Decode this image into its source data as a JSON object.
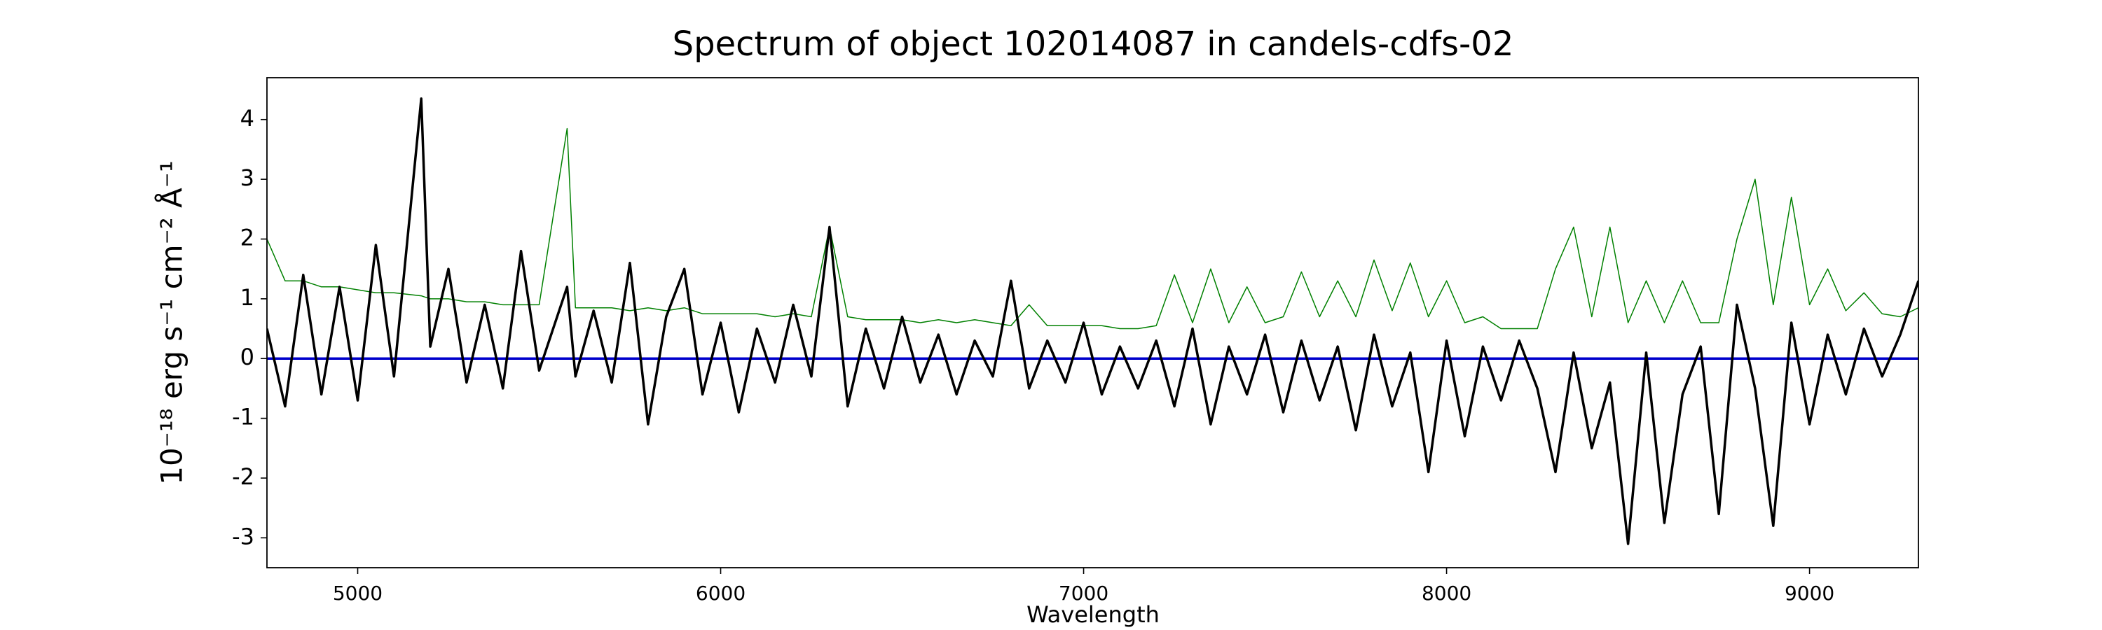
{
  "chart_data": {
    "type": "line",
    "title": "Spectrum of object 102014087 in candels-cdfs-02",
    "xlabel": "Wavelength",
    "ylabel": "10⁻¹⁸ erg s⁻¹ cm⁻² Å⁻¹",
    "xlim": [
      4750,
      9300
    ],
    "ylim": [
      -3.5,
      4.7
    ],
    "xticks": [
      5000,
      6000,
      7000,
      8000,
      9000
    ],
    "yticks": [
      -3,
      -2,
      -1,
      0,
      1,
      2,
      3,
      4
    ],
    "grid": false,
    "x": [
      4750,
      4800,
      4850,
      4900,
      4950,
      5000,
      5050,
      5100,
      5175,
      5200,
      5250,
      5300,
      5350,
      5400,
      5450,
      5500,
      5577,
      5600,
      5650,
      5700,
      5750,
      5800,
      5850,
      5900,
      5950,
      6000,
      6050,
      6100,
      6150,
      6200,
      6250,
      6300,
      6350,
      6400,
      6450,
      6500,
      6550,
      6600,
      6650,
      6700,
      6750,
      6800,
      6850,
      6900,
      6950,
      7000,
      7050,
      7100,
      7150,
      7200,
      7250,
      7300,
      7350,
      7400,
      7450,
      7500,
      7550,
      7600,
      7650,
      7700,
      7750,
      7800,
      7850,
      7900,
      7950,
      8000,
      8050,
      8100,
      8150,
      8200,
      8250,
      8300,
      8350,
      8400,
      8450,
      8500,
      8550,
      8600,
      8650,
      8700,
      8750,
      8800,
      8850,
      8900,
      8950,
      9000,
      9050,
      9100,
      9150,
      9200,
      9250,
      9300
    ],
    "series": [
      {
        "color": "#008000",
        "width": 1.5,
        "values": [
          2.0,
          1.3,
          1.3,
          1.2,
          1.2,
          1.15,
          1.1,
          1.1,
          1.05,
          1.0,
          1.0,
          0.95,
          0.95,
          0.9,
          0.9,
          0.9,
          3.85,
          0.85,
          0.85,
          0.85,
          0.8,
          0.85,
          0.8,
          0.85,
          0.75,
          0.75,
          0.75,
          0.75,
          0.7,
          0.75,
          0.7,
          2.2,
          0.7,
          0.65,
          0.65,
          0.65,
          0.6,
          0.65,
          0.6,
          0.65,
          0.6,
          0.55,
          0.9,
          0.55,
          0.55,
          0.55,
          0.55,
          0.5,
          0.5,
          0.55,
          1.4,
          0.6,
          1.5,
          0.6,
          1.2,
          0.6,
          0.7,
          1.45,
          0.7,
          1.3,
          0.7,
          1.65,
          0.8,
          1.6,
          0.7,
          1.3,
          0.6,
          0.7,
          0.5,
          0.5,
          0.5,
          1.5,
          2.2,
          0.7,
          2.2,
          0.6,
          1.3,
          0.6,
          1.3,
          0.6,
          0.6,
          2.0,
          3.0,
          0.9,
          2.7,
          0.9,
          1.5,
          0.8,
          1.1,
          0.75,
          0.7,
          0.85
        ]
      },
      {
        "color": "#0000cc",
        "width": 3.5,
        "values": [
          0,
          0,
          0,
          0,
          0,
          0,
          0,
          0,
          0,
          0,
          0,
          0,
          0,
          0,
          0,
          0,
          0,
          0,
          0,
          0,
          0,
          0,
          0,
          0,
          0,
          0,
          0,
          0,
          0,
          0,
          0,
          0,
          0,
          0,
          0,
          0,
          0,
          0,
          0,
          0,
          0,
          0,
          0,
          0,
          0,
          0,
          0,
          0,
          0,
          0,
          0,
          0,
          0,
          0,
          0,
          0,
          0,
          0,
          0,
          0,
          0,
          0,
          0,
          0,
          0,
          0,
          0,
          0,
          0,
          0,
          0,
          0,
          0,
          0,
          0,
          0,
          0,
          0,
          0,
          0,
          0,
          0,
          0,
          0,
          0,
          0,
          0,
          0,
          0,
          0,
          0,
          0
        ]
      },
      {
        "color": "#000000",
        "width": 3.5,
        "values": [
          0.5,
          -0.8,
          1.4,
          -0.6,
          1.2,
          -0.7,
          1.9,
          -0.3,
          4.35,
          0.2,
          1.5,
          -0.4,
          0.9,
          -0.5,
          1.8,
          -0.2,
          1.2,
          -0.3,
          0.8,
          -0.4,
          1.6,
          -1.1,
          0.7,
          1.5,
          -0.6,
          0.6,
          -0.9,
          0.5,
          -0.4,
          0.9,
          -0.3,
          2.2,
          -0.8,
          0.5,
          -0.5,
          0.7,
          -0.4,
          0.4,
          -0.6,
          0.3,
          -0.3,
          1.3,
          -0.5,
          0.3,
          -0.4,
          0.6,
          -0.6,
          0.2,
          -0.5,
          0.3,
          -0.8,
          0.5,
          -1.1,
          0.2,
          -0.6,
          0.4,
          -0.9,
          0.3,
          -0.7,
          0.2,
          -1.2,
          0.4,
          -0.8,
          0.1,
          -1.9,
          0.3,
          -1.3,
          0.2,
          -0.7,
          0.3,
          -0.5,
          -1.9,
          0.1,
          -1.5,
          -0.4,
          -3.1,
          0.1,
          -2.75,
          -0.6,
          0.2,
          -2.6,
          0.9,
          -0.5,
          -2.8,
          0.6,
          -1.1,
          0.4,
          -0.6,
          0.5,
          -0.3,
          0.4,
          1.3
        ]
      }
    ]
  }
}
